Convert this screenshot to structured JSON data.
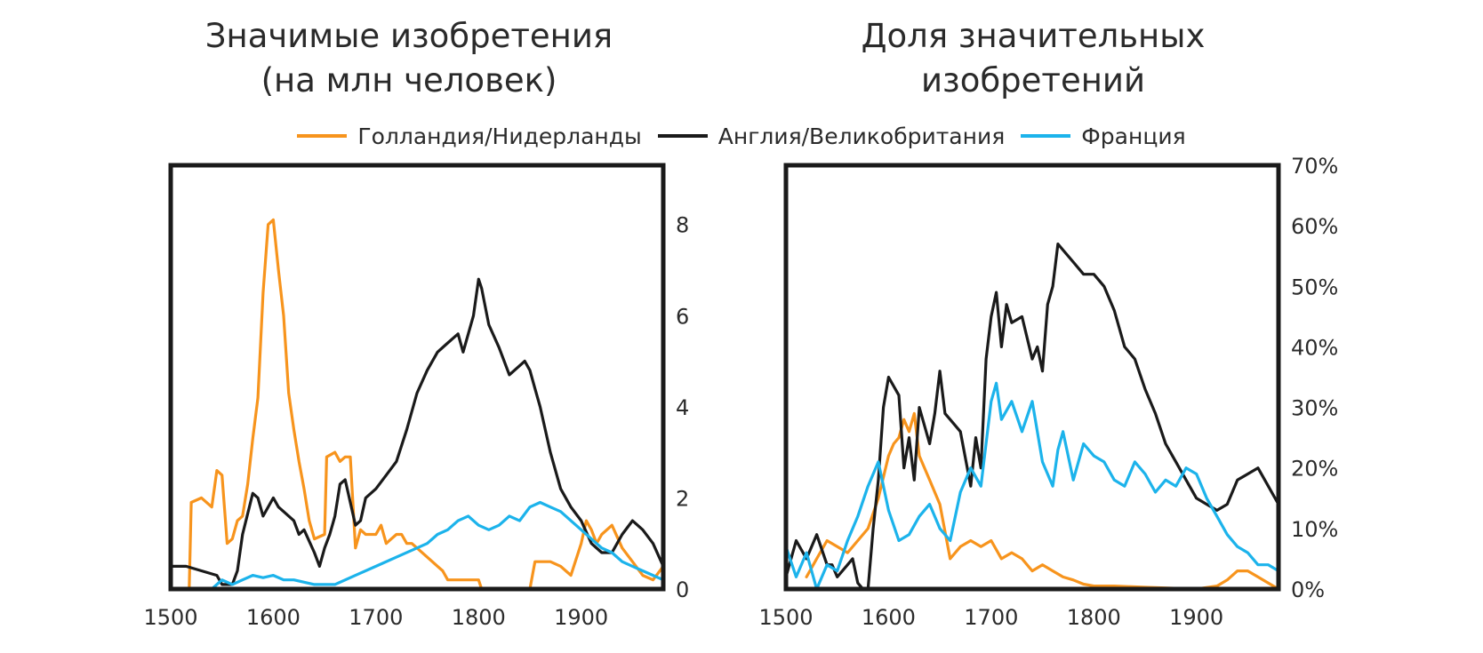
{
  "colors": {
    "netherlands": "#F7941D",
    "england": "#1A1A1A",
    "france": "#1CB3EB"
  },
  "legend": [
    {
      "name": "Голландия/Нидерланды",
      "color": "#F7941D"
    },
    {
      "name": "Англия/Великобритания",
      "color": "#1A1A1A"
    },
    {
      "name": "Франция",
      "color": "#1CB3EB"
    }
  ],
  "chart_data": [
    {
      "type": "line",
      "title_line1": "Значимые изобретения",
      "title_line2": "(на млн человек)",
      "xlim": [
        1500,
        1980
      ],
      "ylim": [
        0,
        9.3
      ],
      "x_ticks": [
        "1500",
        "1600",
        "1700",
        "1800",
        "1900"
      ],
      "y_ticks": [
        "0",
        "2",
        "4",
        "6",
        "8"
      ],
      "y_axis_side": "right",
      "series": [
        {
          "name": "Голландия/Нидерланды",
          "color": "#F7941D",
          "x": [
            1500,
            1518,
            1520,
            1530,
            1540,
            1545,
            1550,
            1555,
            1560,
            1565,
            1570,
            1575,
            1580,
            1585,
            1590,
            1595,
            1600,
            1605,
            1610,
            1615,
            1620,
            1625,
            1630,
            1635,
            1640,
            1650,
            1652,
            1660,
            1665,
            1670,
            1675,
            1680,
            1685,
            1690,
            1700,
            1705,
            1710,
            1715,
            1720,
            1725,
            1730,
            1735,
            1740,
            1750,
            1760,
            1765,
            1770,
            1780,
            1790,
            1800,
            1803,
            1805,
            1820,
            1830,
            1840,
            1850,
            1855,
            1860,
            1870,
            1880,
            1890,
            1900,
            1905,
            1910,
            1915,
            1920,
            1930,
            1940,
            1950,
            1960,
            1970,
            1980
          ],
          "y": [
            0,
            0,
            1.9,
            2.0,
            1.8,
            2.6,
            2.5,
            1.0,
            1.1,
            1.5,
            1.6,
            2.3,
            3.3,
            4.2,
            6.5,
            8.0,
            8.1,
            7.0,
            6.0,
            4.3,
            3.5,
            2.8,
            2.2,
            1.5,
            1.1,
            1.2,
            2.9,
            3.0,
            2.8,
            2.9,
            2.9,
            0.9,
            1.3,
            1.2,
            1.2,
            1.4,
            1.0,
            1.1,
            1.2,
            1.2,
            1.0,
            1.0,
            0.9,
            0.7,
            0.5,
            0.4,
            0.2,
            0.2,
            0.2,
            0.2,
            0,
            0,
            0,
            0,
            0,
            0,
            0.6,
            0.6,
            0.6,
            0.5,
            0.3,
            1.0,
            1.5,
            1.3,
            1.0,
            1.2,
            1.4,
            0.9,
            0.6,
            0.3,
            0.2,
            0.5
          ]
        },
        {
          "name": "Англия/Великобритания",
          "color": "#1A1A1A",
          "x": [
            1500,
            1515,
            1530,
            1545,
            1550,
            1560,
            1565,
            1570,
            1580,
            1585,
            1590,
            1600,
            1605,
            1610,
            1620,
            1625,
            1630,
            1640,
            1645,
            1650,
            1655,
            1660,
            1665,
            1670,
            1675,
            1680,
            1685,
            1690,
            1700,
            1710,
            1720,
            1730,
            1740,
            1750,
            1760,
            1770,
            1780,
            1785,
            1790,
            1795,
            1800,
            1803,
            1810,
            1820,
            1830,
            1840,
            1845,
            1850,
            1855,
            1860,
            1870,
            1880,
            1890,
            1900,
            1910,
            1920,
            1930,
            1940,
            1950,
            1960,
            1970,
            1980
          ],
          "y": [
            0.5,
            0.5,
            0.4,
            0.3,
            0.1,
            0.1,
            0.4,
            1.2,
            2.1,
            2.0,
            1.6,
            2.0,
            1.8,
            1.7,
            1.5,
            1.2,
            1.3,
            0.8,
            0.5,
            0.9,
            1.2,
            1.6,
            2.3,
            2.4,
            1.9,
            1.4,
            1.5,
            2.0,
            2.2,
            2.5,
            2.8,
            3.5,
            4.3,
            4.8,
            5.2,
            5.4,
            5.6,
            5.2,
            5.6,
            6.0,
            6.8,
            6.6,
            5.8,
            5.3,
            4.7,
            4.9,
            5.0,
            4.8,
            4.4,
            4.0,
            3.0,
            2.2,
            1.8,
            1.5,
            1.0,
            0.8,
            0.8,
            1.2,
            1.5,
            1.3,
            1.0,
            0.5
          ]
        },
        {
          "name": "Франция",
          "color": "#1CB3EB",
          "x": [
            1500,
            1540,
            1550,
            1560,
            1570,
            1580,
            1590,
            1600,
            1610,
            1620,
            1640,
            1660,
            1680,
            1700,
            1720,
            1740,
            1750,
            1760,
            1770,
            1780,
            1790,
            1800,
            1810,
            1820,
            1830,
            1840,
            1850,
            1860,
            1870,
            1880,
            1890,
            1900,
            1910,
            1920,
            1930,
            1940,
            1950,
            1960,
            1970,
            1980
          ],
          "y": [
            0,
            0,
            0.2,
            0.1,
            0.2,
            0.3,
            0.25,
            0.3,
            0.2,
            0.2,
            0.1,
            0.1,
            0.3,
            0.5,
            0.7,
            0.9,
            1.0,
            1.2,
            1.3,
            1.5,
            1.6,
            1.4,
            1.3,
            1.4,
            1.6,
            1.5,
            1.8,
            1.9,
            1.8,
            1.7,
            1.5,
            1.3,
            1.1,
            0.9,
            0.8,
            0.6,
            0.5,
            0.4,
            0.3,
            0.2
          ]
        }
      ]
    },
    {
      "type": "line",
      "title_line1": "Доля значительных",
      "title_line2": "изобретений",
      "xlim": [
        1500,
        1980
      ],
      "ylim": [
        0,
        70
      ],
      "x_ticks": [
        "1500",
        "1600",
        "1700",
        "1800",
        "1900"
      ],
      "y_ticks": [
        "0%",
        "10%",
        "20%",
        "30%",
        "40%",
        "50%",
        "60%",
        "70%"
      ],
      "y_axis_side": "right",
      "series": [
        {
          "name": "Голландия/Нидерланды",
          "color": "#F7941D",
          "x": [
            1520,
            1530,
            1540,
            1550,
            1560,
            1570,
            1580,
            1590,
            1600,
            1605,
            1610,
            1615,
            1620,
            1625,
            1630,
            1640,
            1650,
            1660,
            1670,
            1680,
            1690,
            1700,
            1710,
            1720,
            1730,
            1740,
            1750,
            1760,
            1770,
            1780,
            1790,
            1800,
            1820,
            1850,
            1900,
            1920,
            1930,
            1940,
            1950,
            1960,
            1970,
            1980
          ],
          "y": [
            2,
            5,
            8,
            7,
            6,
            8,
            10,
            15,
            22,
            24,
            25,
            28,
            26,
            29,
            22,
            18,
            14,
            5,
            7,
            8,
            7,
            8,
            5,
            6,
            5,
            3,
            4,
            3,
            2,
            1.5,
            0.8,
            0.5,
            0.5,
            0.3,
            0,
            0.5,
            1.5,
            3,
            3,
            2,
            1,
            0
          ]
        },
        {
          "name": "Англия/Великобритания",
          "color": "#1A1A1A",
          "x": [
            1500,
            1510,
            1520,
            1530,
            1540,
            1545,
            1550,
            1560,
            1565,
            1570,
            1575,
            1580,
            1585,
            1590,
            1595,
            1600,
            1610,
            1615,
            1620,
            1625,
            1630,
            1640,
            1645,
            1650,
            1655,
            1660,
            1670,
            1680,
            1685,
            1690,
            1695,
            1700,
            1705,
            1710,
            1715,
            1720,
            1730,
            1740,
            1745,
            1750,
            1755,
            1760,
            1765,
            1770,
            1780,
            1790,
            1800,
            1810,
            1820,
            1830,
            1840,
            1850,
            1860,
            1870,
            1880,
            1890,
            1900,
            1910,
            1920,
            1930,
            1940,
            1950,
            1960,
            1970,
            1980
          ],
          "y": [
            2,
            8,
            5,
            9,
            4,
            4,
            2,
            4,
            5,
            1,
            0,
            0,
            10,
            18,
            30,
            35,
            32,
            20,
            25,
            18,
            30,
            24,
            29,
            36,
            29,
            28,
            26,
            17,
            25,
            20,
            38,
            45,
            49,
            40,
            47,
            44,
            45,
            38,
            40,
            36,
            47,
            50,
            57,
            56,
            54,
            52,
            52,
            50,
            46,
            40,
            38,
            33,
            29,
            24,
            21,
            18,
            15,
            14,
            13,
            14,
            18,
            19,
            20,
            17,
            14
          ]
        },
        {
          "name": "Франция",
          "color": "#1CB3EB",
          "x": [
            1500,
            1510,
            1520,
            1530,
            1540,
            1550,
            1560,
            1570,
            1580,
            1590,
            1600,
            1610,
            1620,
            1630,
            1640,
            1650,
            1660,
            1670,
            1680,
            1690,
            1700,
            1705,
            1710,
            1720,
            1730,
            1740,
            1750,
            1760,
            1765,
            1770,
            1780,
            1790,
            1800,
            1810,
            1820,
            1830,
            1840,
            1850,
            1860,
            1870,
            1880,
            1890,
            1900,
            1910,
            1920,
            1930,
            1940,
            1950,
            1960,
            1970,
            1980
          ],
          "y": [
            7,
            2,
            6,
            0,
            4,
            3,
            8,
            12,
            17,
            21,
            13,
            8,
            9,
            12,
            14,
            10,
            8,
            16,
            20,
            17,
            31,
            34,
            28,
            31,
            26,
            31,
            21,
            17,
            23,
            26,
            18,
            24,
            22,
            21,
            18,
            17,
            21,
            19,
            16,
            18,
            17,
            20,
            19,
            15,
            12,
            9,
            7,
            6,
            4,
            4,
            3
          ]
        }
      ]
    }
  ]
}
